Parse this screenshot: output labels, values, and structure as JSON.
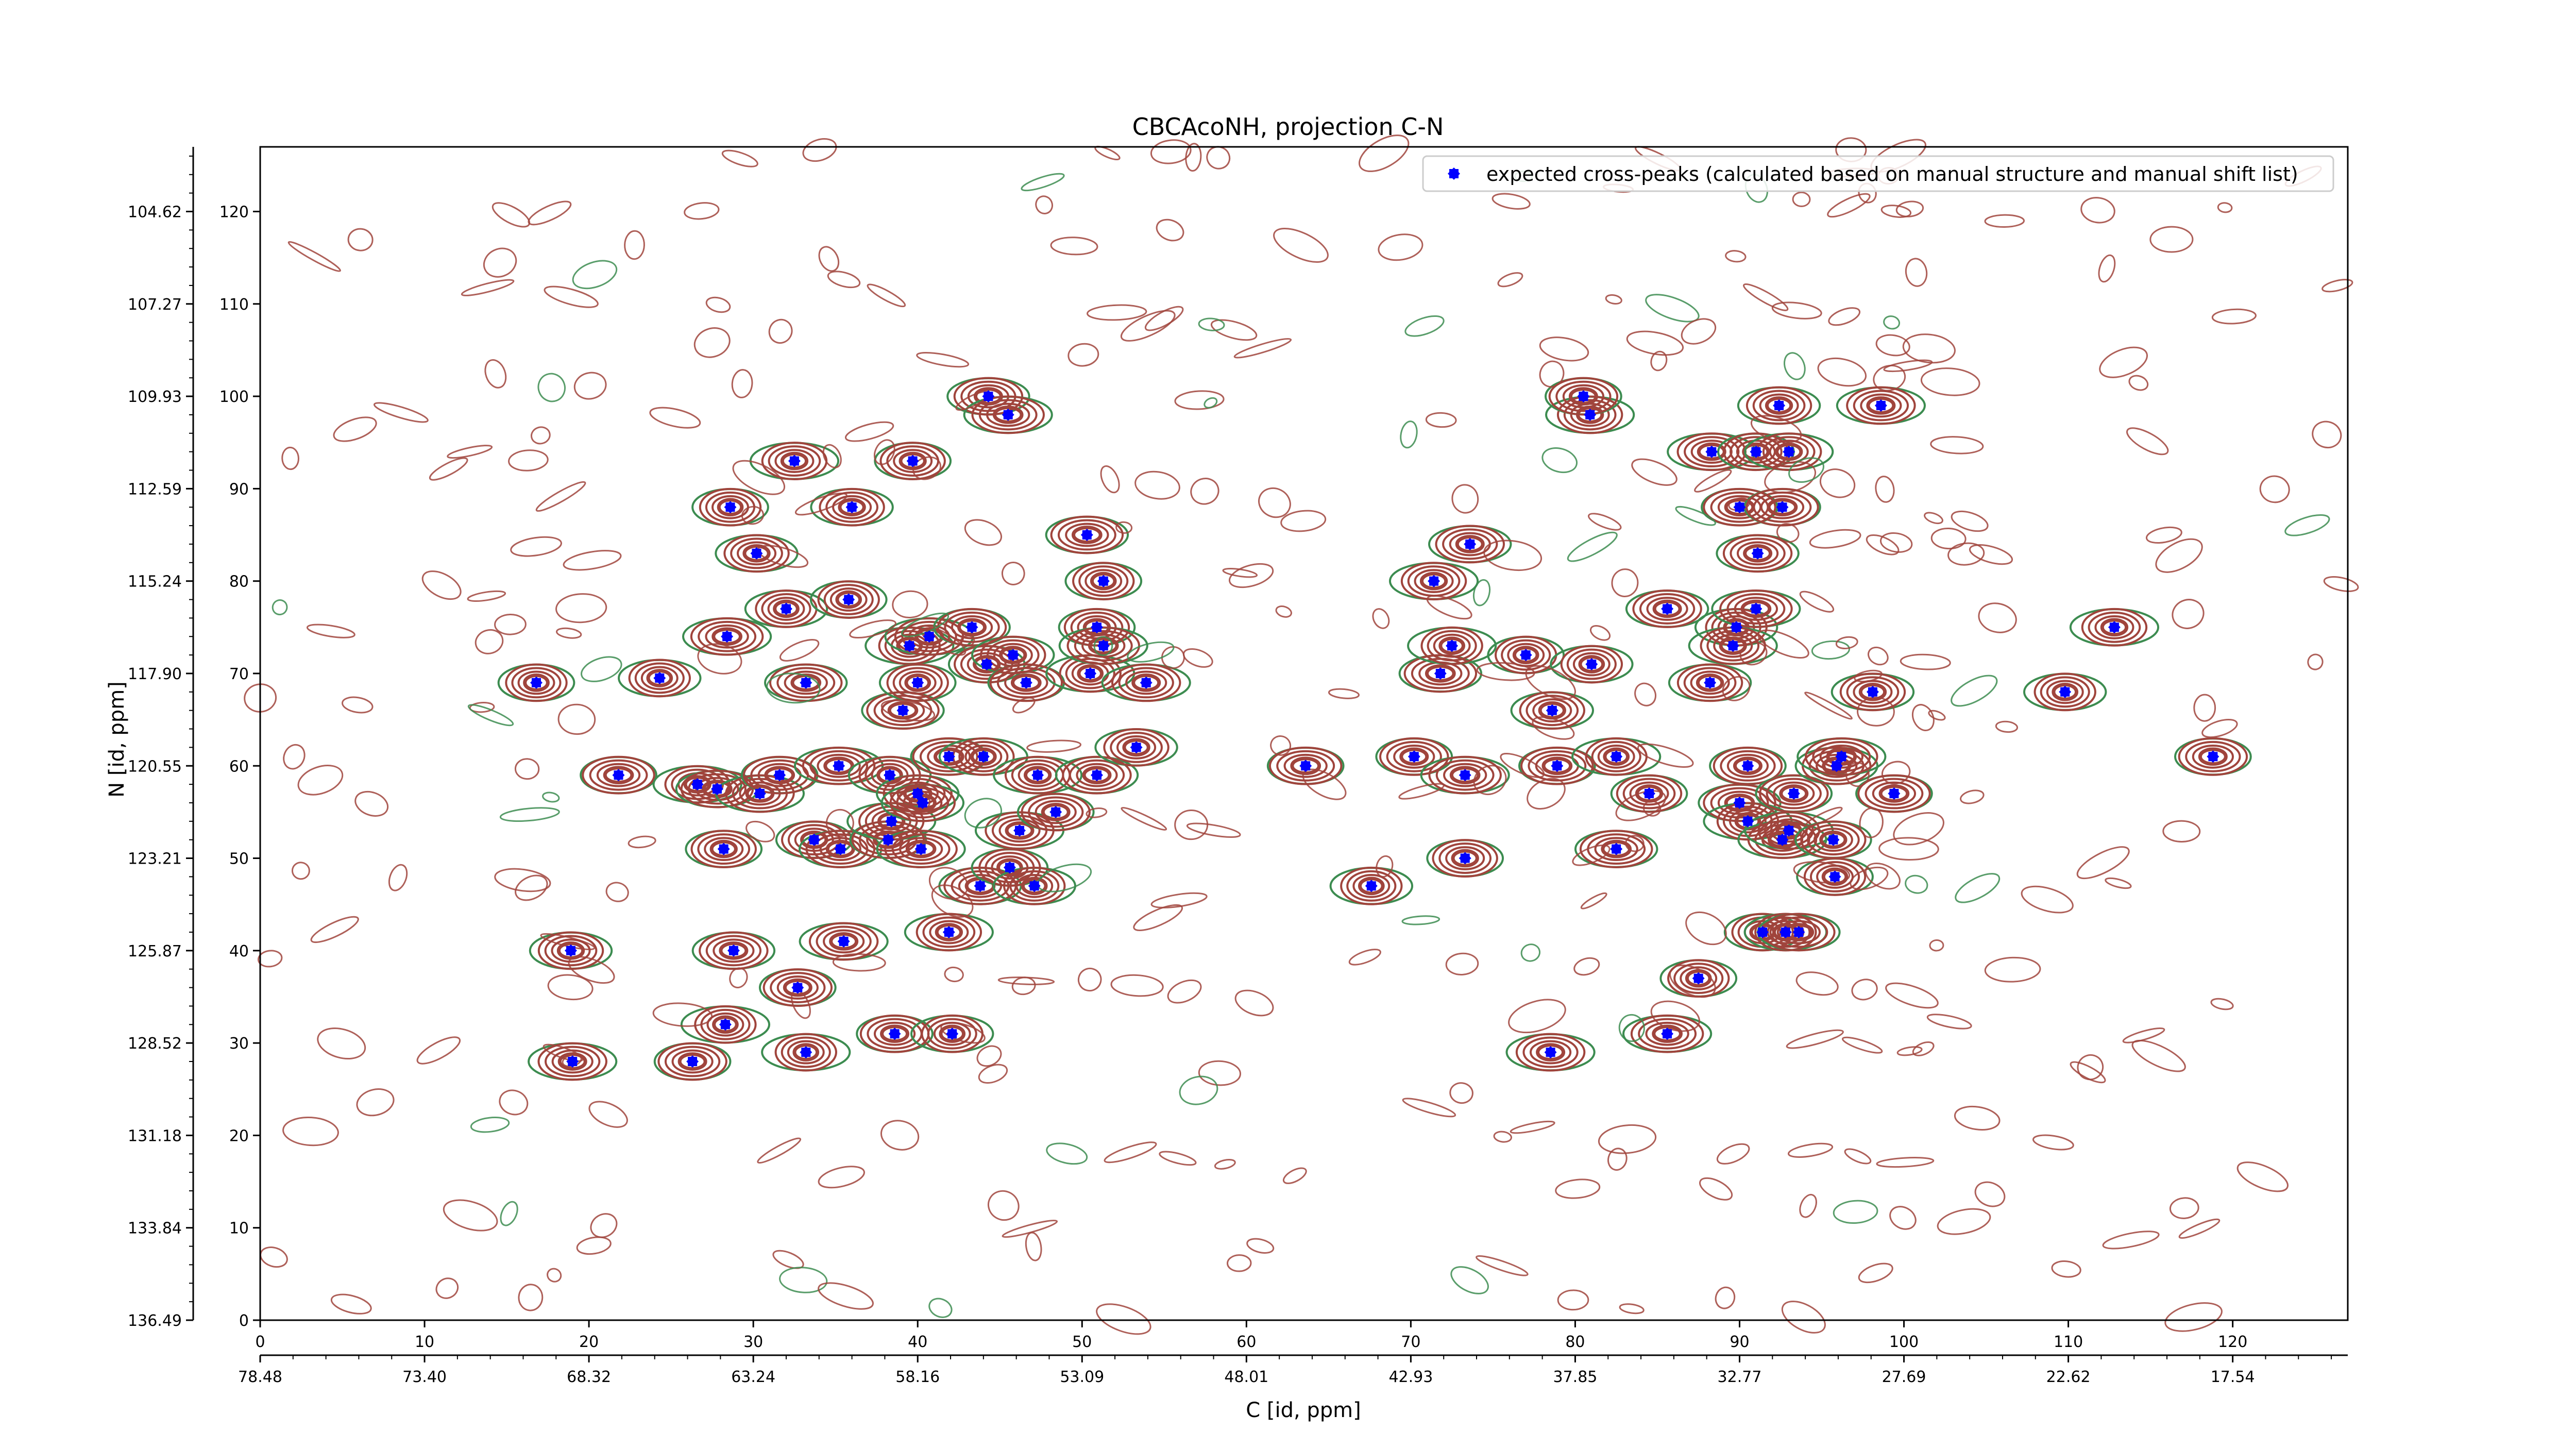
{
  "chart_data": {
    "type": "scatter",
    "title": "CBCAcoNH, projection C-N",
    "xlabel": "C [id, ppm]",
    "ylabel": "N [id, ppm]",
    "xlim": [
      0,
      127
    ],
    "ylim": [
      0,
      127
    ],
    "x_ticks": [
      0,
      10,
      20,
      30,
      40,
      50,
      60,
      70,
      80,
      90,
      100,
      110,
      120
    ],
    "y_ticks": [
      0,
      10,
      20,
      30,
      40,
      50,
      60,
      70,
      80,
      90,
      100,
      110,
      120
    ],
    "x_ppm_ticks": [
      "78.48",
      "73.40",
      "68.32",
      "63.24",
      "58.16",
      "53.09",
      "48.01",
      "42.93",
      "37.85",
      "32.77",
      "27.69",
      "22.62",
      "17.54"
    ],
    "y_ppm_ticks": [
      "136.49",
      "133.84",
      "131.18",
      "128.52",
      "125.87",
      "123.21",
      "120.55",
      "117.90",
      "115.24",
      "112.59",
      "109.93",
      "107.27",
      "104.62"
    ],
    "legend": {
      "label": "expected cross-peaks (calculated based on manual structure and manual shift list)",
      "position": "top-right"
    },
    "colors": {
      "peak_marker": "#0000ff",
      "contour_positive": "#a0443c",
      "contour_negative": "#3c8c50"
    },
    "series": [
      {
        "name": "expected cross-peaks (calculated based on manual structure and manual shift list)",
        "points": [
          [
            16.8,
            69.0
          ],
          [
            18.9,
            40.0
          ],
          [
            19.0,
            28.0
          ],
          [
            21.8,
            59.0
          ],
          [
            24.3,
            69.5
          ],
          [
            26.6,
            58.0
          ],
          [
            26.3,
            28.0
          ],
          [
            27.8,
            57.5
          ],
          [
            28.3,
            32.0
          ],
          [
            28.2,
            51.0
          ],
          [
            28.8,
            40.0
          ],
          [
            28.4,
            74.0
          ],
          [
            28.6,
            88.0
          ],
          [
            30.2,
            83.0
          ],
          [
            30.4,
            57.0
          ],
          [
            31.6,
            59.0
          ],
          [
            32.0,
            77.0
          ],
          [
            32.5,
            93.0
          ],
          [
            32.7,
            36.0
          ],
          [
            33.2,
            69.0
          ],
          [
            33.2,
            29.0
          ],
          [
            33.7,
            52.0
          ],
          [
            35.3,
            51.0
          ],
          [
            35.2,
            60.0
          ],
          [
            35.8,
            78.0
          ],
          [
            36.0,
            88.0
          ],
          [
            35.5,
            41.0
          ],
          [
            38.2,
            52.0
          ],
          [
            38.3,
            59.0
          ],
          [
            38.4,
            54.0
          ],
          [
            38.6,
            31.0
          ],
          [
            39.1,
            66.0
          ],
          [
            39.5,
            73.0
          ],
          [
            39.7,
            93.0
          ],
          [
            40.0,
            57.0
          ],
          [
            40.2,
            51.0
          ],
          [
            40.0,
            69.0
          ],
          [
            40.3,
            56.0
          ],
          [
            40.7,
            74.0
          ],
          [
            41.9,
            61.0
          ],
          [
            42.1,
            31.0
          ],
          [
            41.9,
            42.0
          ],
          [
            43.3,
            75.0
          ],
          [
            43.8,
            47.0
          ],
          [
            44.0,
            61.0
          ],
          [
            44.2,
            71.0
          ],
          [
            44.3,
            100.0
          ],
          [
            45.5,
            98.0
          ],
          [
            45.6,
            49.0
          ],
          [
            45.8,
            72.0
          ],
          [
            46.2,
            53.0
          ],
          [
            46.6,
            69.0
          ],
          [
            47.1,
            47.0
          ],
          [
            47.3,
            59.0
          ],
          [
            48.4,
            55.0
          ],
          [
            50.3,
            85.0
          ],
          [
            50.5,
            70.0
          ],
          [
            50.9,
            75.0
          ],
          [
            50.9,
            59.0
          ],
          [
            51.3,
            73.0
          ],
          [
            51.3,
            80.0
          ],
          [
            53.3,
            62.0
          ],
          [
            53.9,
            69.0
          ],
          [
            63.6,
            60.0
          ],
          [
            67.6,
            47.0
          ],
          [
            71.4,
            80.0
          ],
          [
            70.2,
            61.0
          ],
          [
            71.8,
            70.0
          ],
          [
            72.5,
            73.0
          ],
          [
            73.3,
            50.0
          ],
          [
            73.6,
            84.0
          ],
          [
            73.3,
            59.0
          ],
          [
            77.0,
            72.0
          ],
          [
            78.6,
            66.0
          ],
          [
            78.5,
            29.0
          ],
          [
            78.9,
            60.0
          ],
          [
            81.0,
            71.0
          ],
          [
            80.9,
            98.0
          ],
          [
            80.5,
            100.0
          ],
          [
            82.5,
            51.0
          ],
          [
            82.5,
            61.0
          ],
          [
            84.5,
            57.0
          ],
          [
            85.6,
            77.0
          ],
          [
            85.6,
            31.0
          ],
          [
            87.5,
            37.0
          ],
          [
            88.2,
            69.0
          ],
          [
            88.3,
            94.0
          ],
          [
            90.0,
            88.0
          ],
          [
            89.8,
            75.0
          ],
          [
            89.6,
            73.0
          ],
          [
            90.5,
            60.0
          ],
          [
            90.0,
            56.0
          ],
          [
            90.5,
            54.0
          ],
          [
            91.0,
            94.0
          ],
          [
            91.1,
            83.0
          ],
          [
            91.0,
            77.0
          ],
          [
            91.4,
            42.0
          ],
          [
            92.4,
            99.0
          ],
          [
            92.6,
            52.0
          ],
          [
            92.6,
            88.0
          ],
          [
            92.8,
            42.0
          ],
          [
            93.0,
            94.0
          ],
          [
            93.3,
            57.0
          ],
          [
            93.6,
            42.0
          ],
          [
            93.0,
            53.0
          ],
          [
            95.7,
            52.0
          ],
          [
            95.9,
            60.0
          ],
          [
            96.2,
            61.0
          ],
          [
            95.8,
            48.0
          ],
          [
            98.1,
            68.0
          ],
          [
            98.6,
            99.0
          ],
          [
            99.4,
            57.0
          ],
          [
            109.8,
            68.0
          ],
          [
            112.8,
            75.0
          ],
          [
            118.8,
            61.0
          ]
        ]
      }
    ]
  }
}
